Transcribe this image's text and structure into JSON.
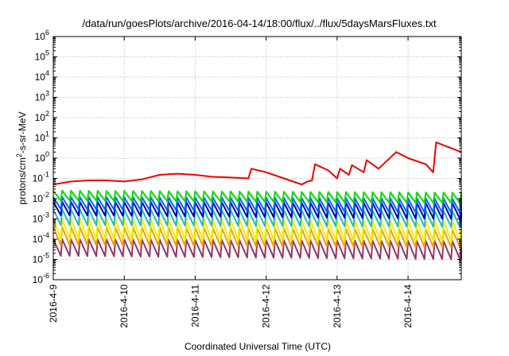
{
  "chart_data": {
    "type": "line",
    "title": "/data/run/goesPlots/archive/2016-04-14/18:00/flux/../flux/5daysMarsFluxes.txt",
    "xlabel": "Coordinated Universal Time (UTC)",
    "ylabel_parts": [
      "protons/cm",
      "2",
      "-s-sr-MeV"
    ],
    "xlim": [
      "2016-04-09T00:00",
      "2016-04-14T18:00"
    ],
    "x_ticks": [
      "2016-4-9",
      "2016-4-10",
      "2016-4-11",
      "2016-4-12",
      "2016-4-13",
      "2016-4-14"
    ],
    "y_scale": "log",
    "ylim": [
      1e-06,
      1000000.0
    ],
    "y_ticks": [
      {
        "base": "10",
        "exp": "-6",
        "value": 1e-06
      },
      {
        "base": "10",
        "exp": "-5",
        "value": 1e-05
      },
      {
        "base": "10",
        "exp": "-4",
        "value": 0.0001
      },
      {
        "base": "10",
        "exp": "-3",
        "value": 0.001
      },
      {
        "base": "10",
        "exp": "-2",
        "value": 0.01
      },
      {
        "base": "10",
        "exp": "-1",
        "value": 0.1
      },
      {
        "base": "10",
        "exp": "0",
        "value": 1
      },
      {
        "base": "10",
        "exp": "1",
        "value": 10
      },
      {
        "base": "10",
        "exp": "2",
        "value": 100
      },
      {
        "base": "10",
        "exp": "3",
        "value": 1000
      },
      {
        "base": "10",
        "exp": "4",
        "value": 10000
      },
      {
        "base": "10",
        "exp": "5",
        "value": 100000
      },
      {
        "base": "10",
        "exp": "6",
        "value": 1000000
      }
    ],
    "grid": true,
    "legend": "none",
    "series": [
      {
        "color": "#ee0000",
        "style": "smooth",
        "x": [
          "2016-04-09T00:00",
          "2016-04-09T06:00",
          "2016-04-09T12:00",
          "2016-04-09T18:00",
          "2016-04-10T00:00",
          "2016-04-10T06:00",
          "2016-04-10T12:00",
          "2016-04-10T18:00",
          "2016-04-11T00:00",
          "2016-04-11T06:00",
          "2016-04-11T12:00",
          "2016-04-11T18:00",
          "2016-04-11T19:00",
          "2016-04-12T00:00",
          "2016-04-12T06:00",
          "2016-04-12T12:00",
          "2016-04-12T14:00",
          "2016-04-12T15:30",
          "2016-04-12T16:30",
          "2016-04-12T21:00",
          "2016-04-13T00:00",
          "2016-04-13T01:00",
          "2016-04-13T04:00",
          "2016-04-13T05:00",
          "2016-04-13T09:00",
          "2016-04-13T10:00",
          "2016-04-13T14:00",
          "2016-04-13T20:00",
          "2016-04-14T00:00",
          "2016-04-14T06:00",
          "2016-04-14T08:30",
          "2016-04-14T09:30",
          "2016-04-14T18:00"
        ],
        "y": [
          0.05,
          0.07,
          0.08,
          0.08,
          0.07,
          0.09,
          0.15,
          0.17,
          0.15,
          0.12,
          0.11,
          0.1,
          0.3,
          0.2,
          0.1,
          0.05,
          0.07,
          0.08,
          0.5,
          0.25,
          0.1,
          0.3,
          0.15,
          0.45,
          0.2,
          0.8,
          0.3,
          2.0,
          1.0,
          0.5,
          0.2,
          6.0,
          2.0
        ]
      },
      {
        "color": "#00dd00",
        "style": "sawtooth",
        "peak": 0.025,
        "trough": 0.008,
        "end_peak": 0.02,
        "end_trough": 0.006
      },
      {
        "color": "#0066ff",
        "style": "sawtooth",
        "peak": 0.012,
        "trough": 0.003,
        "end_peak": 0.01,
        "end_trough": 0.002
      },
      {
        "color": "#0000bb",
        "style": "sawtooth",
        "peak": 0.007,
        "trough": 0.0015,
        "end_peak": 0.006,
        "end_trough": 0.001
      },
      {
        "color": "#22bbbb",
        "style": "sawtooth",
        "peak": 0.003,
        "trough": 0.0005,
        "end_peak": 0.0025,
        "end_trough": 0.0004
      },
      {
        "color": "#eeee00",
        "style": "sawtooth",
        "peak": 0.001,
        "trough": 0.0001,
        "end_peak": 0.0008,
        "end_trough": 8e-05
      },
      {
        "color": "#f0a000",
        "style": "sawtooth",
        "peak": 0.0004,
        "trough": 5e-05,
        "end_peak": 0.0003,
        "end_trough": 4e-05
      },
      {
        "color": "#993366",
        "style": "sawtooth",
        "peak": 0.0001,
        "trough": 1.5e-05,
        "end_peak": 8e-05,
        "end_trough": 1e-05
      }
    ],
    "sawtooth_period_hours": 3
  }
}
